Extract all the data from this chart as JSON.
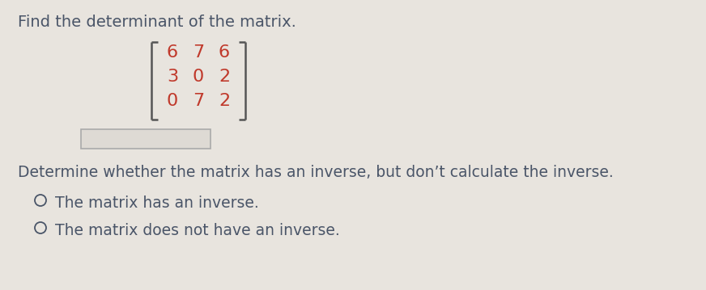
{
  "title": "Find the determinant of the matrix.",
  "matrix": [
    [
      6,
      7,
      6
    ],
    [
      3,
      0,
      2
    ],
    [
      0,
      7,
      2
    ]
  ],
  "matrix_color": "#c0392b",
  "bracket_color": "#555555",
  "question2": "Determine whether the matrix has an inverse, but don’t calculate the inverse.",
  "option1": "The matrix has an inverse.",
  "option2": "The matrix does not have an inverse.",
  "bg_color": "#e8e4de",
  "text_color": "#4a5568",
  "title_fontsize": 14,
  "matrix_fontsize": 16,
  "body_fontsize": 13.5
}
